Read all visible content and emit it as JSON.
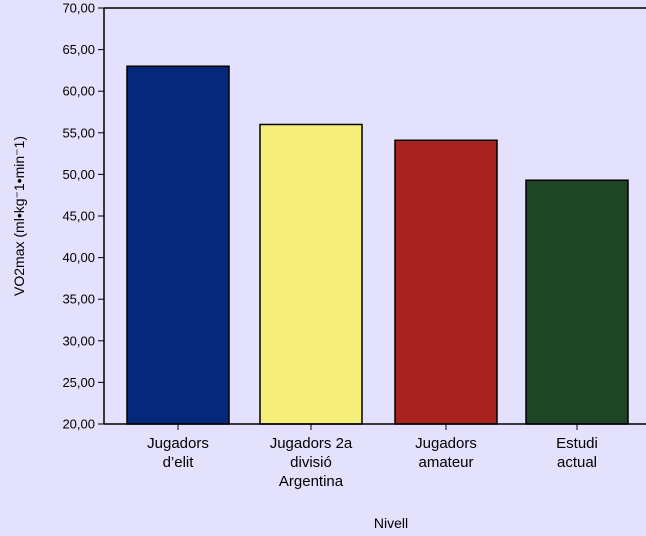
{
  "colors": {
    "background": "#e3e1fb",
    "plot_background": "#e3e1fb",
    "axis": "#000000"
  },
  "chart_data": {
    "type": "bar",
    "categories": [
      [
        "Jugadors",
        "d’elit"
      ],
      [
        "Jugadors 2a",
        "divisió",
        "Argentina"
      ],
      [
        "Jugadors",
        "amateur"
      ],
      [
        "Estudi",
        "actual"
      ]
    ],
    "values": [
      63.0,
      56.0,
      54.1,
      49.3
    ],
    "bar_colors": [
      "#06287a",
      "#f5ef7a",
      "#a8231f",
      "#1e4626"
    ],
    "yticks": [
      "20,00",
      "25,00",
      "30,00",
      "35,00",
      "40,00",
      "45,00",
      "50,00",
      "55,00",
      "60,00",
      "65,00",
      "70,00"
    ],
    "ylim": [
      20,
      70
    ],
    "xlabel": "Nivell",
    "ylabel": "VO2max (ml•kg⁻1•min⁻1)",
    "title": "",
    "grid": false,
    "legend": "none"
  }
}
